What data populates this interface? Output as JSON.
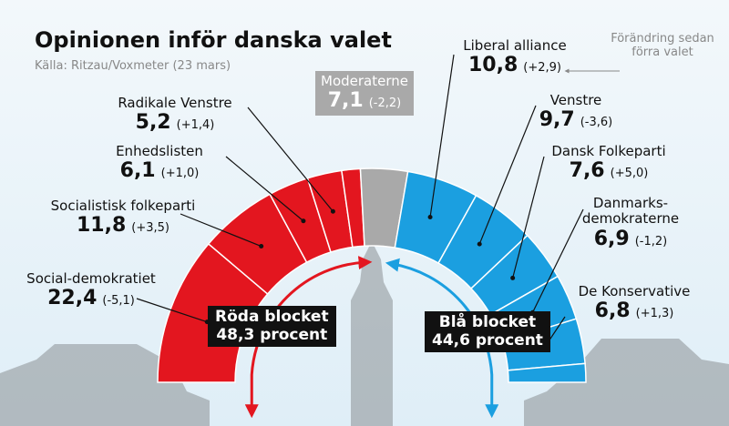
{
  "chart_data": {
    "type": "semicircle",
    "title": "Opinionen inför danska valet",
    "subtitle": "Källa: Ritzau/Voxmeter (23 mars)",
    "note": "Förändring sedan förra valet",
    "categories": [
      "Social-demokratiet",
      "Socialistisk folkeparti",
      "Enhedslisten",
      "Radikale Venstre",
      null,
      "Moderaterne",
      "Liberal alliance",
      "Venstre",
      "Dansk Folkeparti",
      "Danmarks-demokraterne",
      "De Konservative",
      null
    ],
    "values": [
      22.4,
      11.8,
      6.1,
      5.2,
      2.8,
      7.1,
      10.8,
      9.7,
      7.6,
      6.9,
      6.8,
      2.8
    ],
    "value_labels": [
      "22,4",
      "11,8",
      "6,1",
      "5,2",
      null,
      "7,1",
      "10,8",
      "9,7",
      "7,6",
      "6,9",
      "6,8",
      null
    ],
    "change_labels": [
      "(-5,1)",
      "(+3,5)",
      "(+1,0)",
      "(+1,4)",
      null,
      "(-2,2)",
      "(+2,9)",
      "(-3,6)",
      "(+5,0)",
      "(-1,2)",
      "(+1,3)",
      null
    ],
    "colors": [
      "#e3161f",
      "#e3161f",
      "#e3161f",
      "#e3161f",
      "#e3161f",
      "#a9a9a9",
      "#1b9fe0",
      "#1b9fe0",
      "#1b9fe0",
      "#1b9fe0",
      "#1b9fe0",
      "#1b9fe0"
    ],
    "blocks": [
      {
        "name": "Röda blocket",
        "value": 48.3,
        "label": "48,3 procent",
        "color": "#e3161f"
      },
      {
        "name": "Blå blocket",
        "value": 44.6,
        "label": "44,6 procent",
        "color": "#1b9fe0"
      }
    ]
  }
}
